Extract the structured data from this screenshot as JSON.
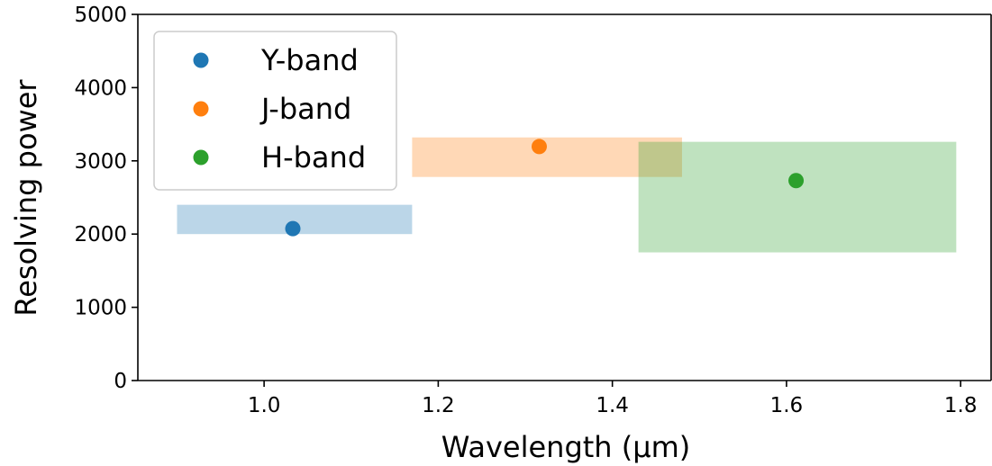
{
  "chart_data": {
    "type": "scatter",
    "title": "",
    "xlabel": "Wavelength (µm)",
    "ylabel": "Resolving power",
    "xlim": [
      0.855,
      1.835
    ],
    "ylim": [
      0,
      5000
    ],
    "x_ticks": [
      "1.0",
      "1.2",
      "1.4",
      "1.6",
      "1.8"
    ],
    "y_ticks": [
      "0",
      "1000",
      "2000",
      "3000",
      "4000",
      "5000"
    ],
    "grid": false,
    "legend_position": "upper-left",
    "series": [
      {
        "name": "Y-band",
        "color": "#1f77b4",
        "point": {
          "x": 1.033,
          "y": 2075
        },
        "range": {
          "x": [
            0.9,
            1.17
          ],
          "y": [
            2000,
            2400
          ]
        }
      },
      {
        "name": "J-band",
        "color": "#ff7f0e",
        "point": {
          "x": 1.316,
          "y": 3195
        },
        "range": {
          "x": [
            1.17,
            1.48
          ],
          "y": [
            2780,
            3320
          ]
        }
      },
      {
        "name": "H-band",
        "color": "#2ca02c",
        "point": {
          "x": 1.611,
          "y": 2730
        },
        "range": {
          "x": [
            1.43,
            1.795
          ],
          "y": [
            1750,
            3260
          ]
        }
      }
    ]
  }
}
